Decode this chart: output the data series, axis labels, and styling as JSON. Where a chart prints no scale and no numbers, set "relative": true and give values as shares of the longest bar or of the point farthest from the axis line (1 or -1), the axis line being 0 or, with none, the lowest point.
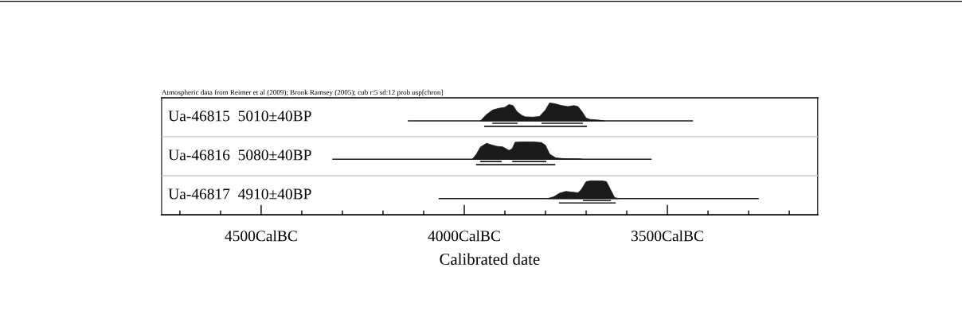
{
  "chart_data": [
    {
      "type": "area",
      "relative": true,
      "title": "Ua-46815  5010±40BP",
      "xlim": [
        4745,
        3130
      ],
      "tick_labels": false,
      "annotations": [
        "Atmospheric data from Reimer et al (2009); Bronk Ramsey (2005); cub r:5 sd:12 prob usp[chron]"
      ],
      "series": [
        {
          "type": "line",
          "color": "#1a1a1a",
          "x": [
            4139,
            3437
          ],
          "values": [
            0.47,
            0.47
          ]
        },
        {
          "color": "#1a1a1a",
          "x": [
            3960,
            3945,
            3930,
            3915,
            3900,
            3890,
            3880,
            3870,
            3858,
            3850,
            3830,
            3815,
            3800,
            3790,
            3775,
            3760,
            3745,
            3730,
            3720,
            3710,
            3700,
            3690,
            3675,
            3660,
            3655
          ],
          "values": [
            0.47,
            0.66,
            0.79,
            0.84,
            0.87,
            0.95,
            0.92,
            0.74,
            0.63,
            0.59,
            0.58,
            0.6,
            0.79,
            1.0,
            0.97,
            0.92,
            0.89,
            0.92,
            0.89,
            0.74,
            0.55,
            0.51,
            0.5,
            0.48,
            0.47
          ]
        },
        {
          "type": "line",
          "color": "#1a1a1a",
          "x": [
            3931,
            3869,
            3850,
            3810,
            3708
          ],
          "values": [
            0.4,
            0.4,
            null,
            0.4,
            0.4
          ]
        },
        {
          "type": "line",
          "color": "#1a1a1a",
          "x": [
            3951,
            3698
          ],
          "values": [
            0.31,
            0.31
          ]
        }
      ]
    },
    {
      "type": "area",
      "relative": true,
      "title": "Ua-46816  5080±40BP",
      "xlim": [
        4745,
        3130
      ],
      "tick_labels": false,
      "series": [
        {
          "type": "line",
          "color": "#1a1a1a",
          "x": [
            4325,
            3539
          ],
          "values": [
            0.49,
            0.49
          ]
        },
        {
          "color": "#1a1a1a",
          "x": [
            3980,
            3970,
            3960,
            3945,
            3935,
            3920,
            3905,
            3890,
            3882,
            3875,
            3860,
            3830,
            3810,
            3800,
            3790,
            3775,
            3760,
            3740,
            3720,
            3710
          ],
          "values": [
            0.49,
            0.64,
            0.85,
            0.96,
            0.92,
            0.87,
            0.85,
            0.75,
            0.8,
            0.99,
            1.0,
            1.0,
            0.98,
            0.9,
            0.64,
            0.53,
            0.51,
            0.5,
            0.5,
            0.49
          ]
        },
        {
          "type": "line",
          "color": "#1a1a1a",
          "x": [
            3961,
            3908,
            3895,
            3882,
            3798
          ],
          "values": [
            0.42,
            0.42,
            null,
            0.42,
            0.42
          ]
        },
        {
          "type": "line",
          "color": "#1a1a1a",
          "x": [
            3971,
            3776
          ],
          "values": [
            0.33,
            0.33
          ]
        }
      ]
    },
    {
      "type": "area",
      "relative": true,
      "title": "Ua-46817  4910±40BP",
      "xlim": [
        4745,
        3130
      ],
      "tick_labels": "x",
      "xlabel": "Calibrated date",
      "xticks": [
        {
          "value": 4700,
          "label": null
        },
        {
          "value": 4600,
          "label": null
        },
        {
          "value": 4500,
          "label": "4500CalBC"
        },
        {
          "value": 4400,
          "label": null
        },
        {
          "value": 4300,
          "label": null
        },
        {
          "value": 4200,
          "label": null
        },
        {
          "value": 4100,
          "label": null
        },
        {
          "value": 4000,
          "label": "4000CalBC"
        },
        {
          "value": 3900,
          "label": null
        },
        {
          "value": 3800,
          "label": null
        },
        {
          "value": 3700,
          "label": null
        },
        {
          "value": 3600,
          "label": null
        },
        {
          "value": 3500,
          "label": "3500CalBC"
        },
        {
          "value": 3400,
          "label": null
        },
        {
          "value": 3300,
          "label": null
        },
        {
          "value": 3200,
          "label": null
        }
      ],
      "series": [
        {
          "type": "line",
          "color": "#1a1a1a",
          "x": [
            4063,
            3275
          ],
          "values": [
            0.48,
            0.48
          ]
        },
        {
          "color": "#1a1a1a",
          "x": [
            3795,
            3780,
            3765,
            3750,
            3735,
            3720,
            3712,
            3700,
            3690,
            3660,
            3650,
            3640,
            3630,
            3620
          ],
          "values": [
            0.48,
            0.53,
            0.64,
            0.69,
            0.67,
            0.65,
            0.74,
            0.98,
            1.0,
            1.0,
            0.98,
            0.74,
            0.51,
            0.48
          ]
        },
        {
          "type": "line",
          "color": "#1a1a1a",
          "x": [
            3708,
            3639
          ],
          "values": [
            0.42,
            0.42
          ]
        },
        {
          "type": "line",
          "color": "#1a1a1a",
          "x": [
            3767,
            3627
          ],
          "values": [
            0.35,
            0.35
          ]
        }
      ]
    }
  ]
}
